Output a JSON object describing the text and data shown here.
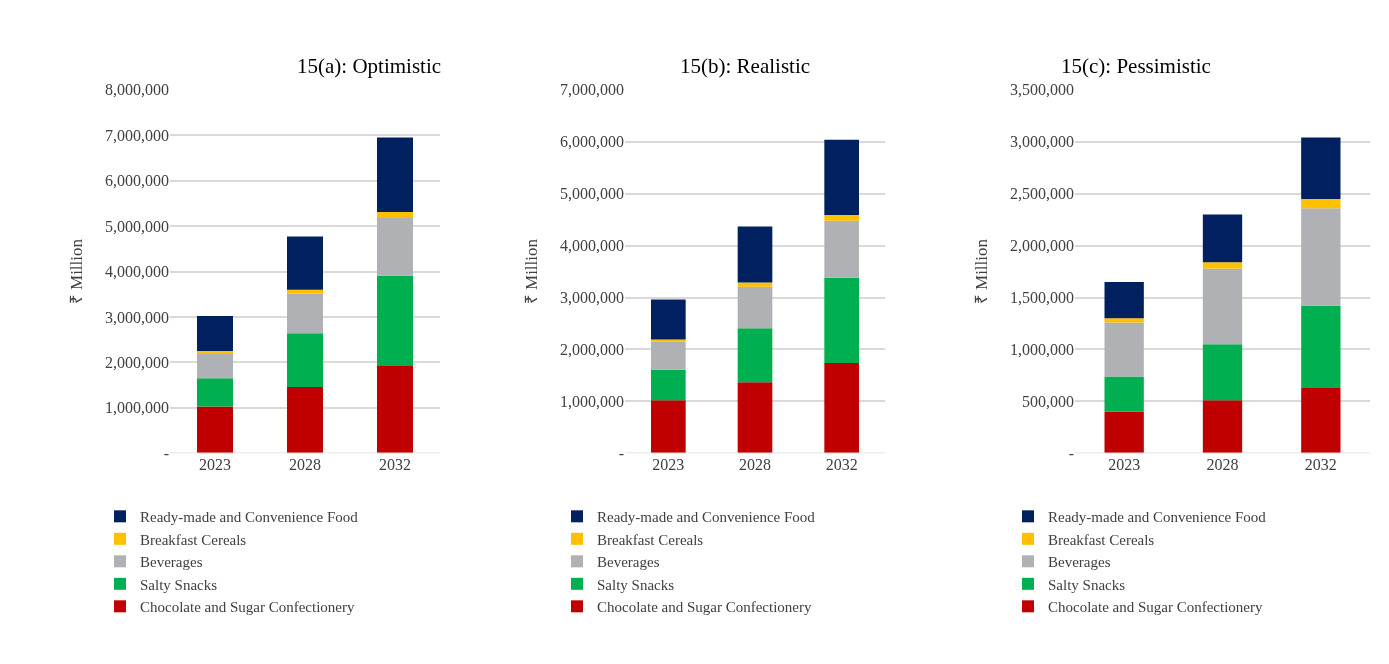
{
  "chart_data": [
    {
      "type": "bar",
      "title": "15(a): Optimistic",
      "ylabel": "₹ Million",
      "categories": [
        "2023",
        "2028",
        "2032"
      ],
      "stacked": true,
      "legend": "bottom",
      "grid": "y",
      "ylim": [
        0,
        8000000
      ],
      "yticks": [
        {
          "value": 0,
          "label": "-"
        },
        {
          "value": 1000000,
          "label": "1,000,000"
        },
        {
          "value": 2000000,
          "label": "2,000,000"
        },
        {
          "value": 3000000,
          "label": "3,000,000"
        },
        {
          "value": 4000000,
          "label": "4,000,000"
        },
        {
          "value": 5000000,
          "label": "5,000,000"
        },
        {
          "value": 6000000,
          "label": "6,000,000"
        },
        {
          "value": 7000000,
          "label": "7,000,000"
        },
        {
          "value": 8000000,
          "label": "8,000,000"
        }
      ],
      "series": [
        {
          "name": "Chocolate and Sugar Confectionery",
          "color": "#c00000",
          "values": [
            1030000,
            1460000,
            1920000
          ]
        },
        {
          "name": "Salty Snacks",
          "color": "#00b050",
          "values": [
            620000,
            1180000,
            1990000
          ]
        },
        {
          "name": "Beverages",
          "color": "#b0b1b5",
          "values": [
            560000,
            870000,
            1270000
          ]
        },
        {
          "name": "Breakfast Cereals",
          "color": "#ffc000",
          "values": [
            40000,
            90000,
            130000
          ]
        },
        {
          "name": "Ready-made and Convenience Food",
          "color": "#002060",
          "values": [
            770000,
            1170000,
            1640000
          ]
        }
      ]
    },
    {
      "type": "bar",
      "title": "15(b): Realistic",
      "ylabel": "₹ Million",
      "categories": [
        "2023",
        "2028",
        "2032"
      ],
      "stacked": true,
      "legend": "bottom",
      "grid": "y",
      "ylim": [
        0,
        7000000
      ],
      "yticks": [
        {
          "value": 0,
          "label": "-"
        },
        {
          "value": 1000000,
          "label": "1,000,000"
        },
        {
          "value": 2000000,
          "label": "2,000,000"
        },
        {
          "value": 3000000,
          "label": "3,000,000"
        },
        {
          "value": 4000000,
          "label": "4,000,000"
        },
        {
          "value": 5000000,
          "label": "5,000,000"
        },
        {
          "value": 6000000,
          "label": "6,000,000"
        },
        {
          "value": 7000000,
          "label": "7,000,000"
        }
      ],
      "series": [
        {
          "name": "Chocolate and Sugar Confectionery",
          "color": "#c00000",
          "values": [
            1020000,
            1370000,
            1740000
          ]
        },
        {
          "name": "Salty Snacks",
          "color": "#00b050",
          "values": [
            590000,
            1040000,
            1640000
          ]
        },
        {
          "name": "Beverages",
          "color": "#b0b1b5",
          "values": [
            540000,
            800000,
            1100000
          ]
        },
        {
          "name": "Breakfast Cereals",
          "color": "#ffc000",
          "values": [
            40000,
            80000,
            110000
          ]
        },
        {
          "name": "Ready-made and Convenience Food",
          "color": "#002060",
          "values": [
            770000,
            1080000,
            1450000
          ]
        }
      ]
    },
    {
      "type": "bar",
      "title": "15(c): Pessimistic",
      "ylabel": "₹ Million",
      "categories": [
        "2023",
        "2028",
        "2032"
      ],
      "stacked": true,
      "legend": "bottom",
      "grid": "y",
      "ylim": [
        0,
        3500000
      ],
      "yticks": [
        {
          "value": 0,
          "label": "-"
        },
        {
          "value": 500000,
          "label": "500,000"
        },
        {
          "value": 1000000,
          "label": "1,000,000"
        },
        {
          "value": 1500000,
          "label": "1,500,000"
        },
        {
          "value": 2000000,
          "label": "2,000,000"
        },
        {
          "value": 2500000,
          "label": "2,500,000"
        },
        {
          "value": 3000000,
          "label": "3,000,000"
        },
        {
          "value": 3500000,
          "label": "3,500,000"
        }
      ],
      "series": [
        {
          "name": "Chocolate and Sugar Confectionery",
          "color": "#c00000",
          "values": [
            400000,
            510000,
            630000
          ]
        },
        {
          "name": "Salty Snacks",
          "color": "#00b050",
          "values": [
            340000,
            540000,
            790000
          ]
        },
        {
          "name": "Beverages",
          "color": "#b0b1b5",
          "values": [
            520000,
            730000,
            940000
          ]
        },
        {
          "name": "Breakfast Cereals",
          "color": "#ffc000",
          "values": [
            40000,
            60000,
            90000
          ]
        },
        {
          "name": "Ready-made and Convenience Food",
          "color": "#002060",
          "values": [
            350000,
            460000,
            590000
          ]
        }
      ]
    }
  ]
}
